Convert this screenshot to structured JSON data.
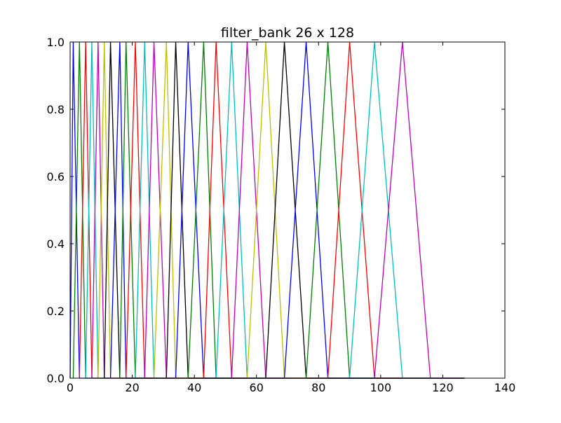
{
  "chart_data": {
    "type": "line",
    "title": "filter_bank 26 x 128",
    "xlabel": "",
    "ylabel": "",
    "xlim": [
      0,
      140
    ],
    "ylim": [
      0.0,
      1.0
    ],
    "xticks": [
      "0",
      "20",
      "40",
      "60",
      "80",
      "100",
      "120",
      "140"
    ],
    "yticks": [
      "0.0",
      "0.2",
      "0.4",
      "0.6",
      "0.8",
      "1.0"
    ],
    "grid": false,
    "legend": "none",
    "color_cycle": [
      "#0000ff",
      "#008000",
      "#ff0000",
      "#00bfbf",
      "#bf00bf",
      "#bfbf00",
      "#000000"
    ],
    "filter_points": [
      0,
      1,
      3,
      5,
      7,
      9,
      11,
      13,
      16,
      18,
      21,
      24,
      27,
      31,
      34,
      38,
      43,
      47,
      52,
      57,
      63,
      69,
      76,
      83,
      90,
      98,
      107,
      116
    ],
    "x_end": 127,
    "series": [
      {
        "x": [
          0,
          1,
          3
        ],
        "y": [
          0,
          1,
          0
        ]
      },
      {
        "x": [
          1,
          3,
          5
        ],
        "y": [
          0,
          1,
          0
        ]
      },
      {
        "x": [
          3,
          5,
          7
        ],
        "y": [
          0,
          1,
          0
        ]
      },
      {
        "x": [
          5,
          7,
          9
        ],
        "y": [
          0,
          1,
          0
        ]
      },
      {
        "x": [
          7,
          9,
          11
        ],
        "y": [
          0,
          1,
          0
        ]
      },
      {
        "x": [
          9,
          11,
          13
        ],
        "y": [
          0,
          1,
          0
        ]
      },
      {
        "x": [
          11,
          13,
          16
        ],
        "y": [
          0,
          1,
          0
        ]
      },
      {
        "x": [
          13,
          16,
          18
        ],
        "y": [
          0,
          1,
          0
        ]
      },
      {
        "x": [
          16,
          18,
          21
        ],
        "y": [
          0,
          1,
          0
        ]
      },
      {
        "x": [
          18,
          21,
          24
        ],
        "y": [
          0,
          1,
          0
        ]
      },
      {
        "x": [
          21,
          24,
          27
        ],
        "y": [
          0,
          1,
          0
        ]
      },
      {
        "x": [
          24,
          27,
          31
        ],
        "y": [
          0,
          1,
          0
        ]
      },
      {
        "x": [
          27,
          31,
          34
        ],
        "y": [
          0,
          1,
          0
        ]
      },
      {
        "x": [
          31,
          34,
          38
        ],
        "y": [
          0,
          1,
          0
        ]
      },
      {
        "x": [
          34,
          38,
          43
        ],
        "y": [
          0,
          1,
          0
        ]
      },
      {
        "x": [
          38,
          43,
          47
        ],
        "y": [
          0,
          1,
          0
        ]
      },
      {
        "x": [
          43,
          47,
          52
        ],
        "y": [
          0,
          1,
          0
        ]
      },
      {
        "x": [
          47,
          52,
          57
        ],
        "y": [
          0,
          1,
          0
        ]
      },
      {
        "x": [
          52,
          57,
          63
        ],
        "y": [
          0,
          1,
          0
        ]
      },
      {
        "x": [
          57,
          63,
          69
        ],
        "y": [
          0,
          1,
          0
        ]
      },
      {
        "x": [
          63,
          69,
          76
        ],
        "y": [
          0,
          1,
          0
        ]
      },
      {
        "x": [
          69,
          76,
          83
        ],
        "y": [
          0,
          1,
          0
        ]
      },
      {
        "x": [
          76,
          83,
          90
        ],
        "y": [
          0,
          1,
          0
        ]
      },
      {
        "x": [
          83,
          90,
          98
        ],
        "y": [
          0,
          1,
          0
        ]
      },
      {
        "x": [
          90,
          98,
          107
        ],
        "y": [
          0,
          1,
          0
        ]
      },
      {
        "x": [
          98,
          107,
          116
        ],
        "y": [
          0,
          1,
          0
        ]
      }
    ]
  }
}
